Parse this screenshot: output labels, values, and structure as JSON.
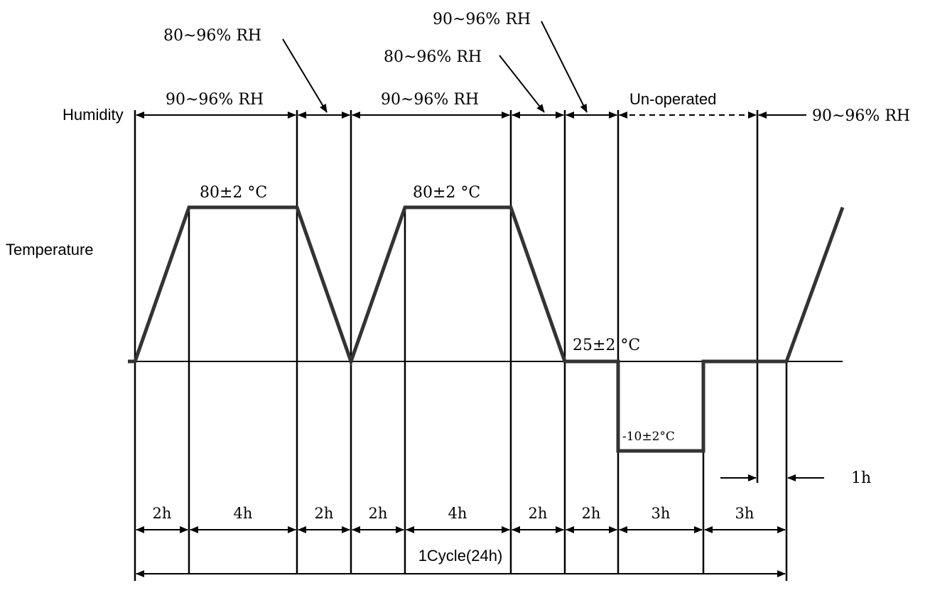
{
  "labels": {
    "humidity": "Humidity",
    "temperature": "Temperature"
  },
  "humidity_segments": {
    "seg1": "90~96% RH",
    "seg2": "90~96% RH",
    "seg3": "Un-operated",
    "seg4": "90~96% RH"
  },
  "callouts": {
    "c1": "80~96% RH",
    "c2": "80~96% RH",
    "c3": "90~96% RH"
  },
  "temperature_levels": {
    "high1": "80±2 °C",
    "high2": "80±2 °C",
    "ambient": "25±2 °C",
    "low": "-10±2°C"
  },
  "durations": [
    "2h",
    "4h",
    "2h",
    "2h",
    "4h",
    "2h",
    "2h",
    "3h",
    "3h"
  ],
  "gap": "1h",
  "cycle": "1Cycle(24h)"
}
